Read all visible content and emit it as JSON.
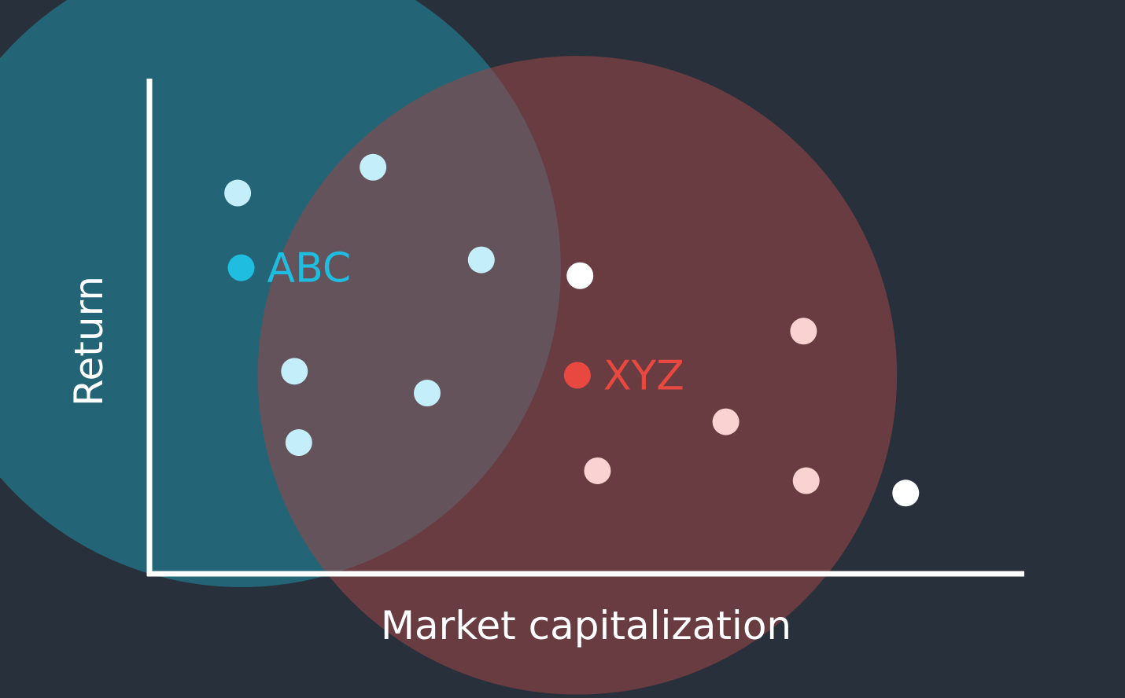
{
  "chart_data": {
    "type": "scatter",
    "xlabel": "Market capitalization",
    "ylabel": "Return",
    "xlim": [
      0,
      100
    ],
    "ylim": [
      0,
      100
    ],
    "grid": false,
    "clusters": [
      {
        "name": "ABC",
        "center": [
          10.5,
          61.8
        ],
        "radius": 36.6,
        "fill": "#1f8fa8",
        "point_color": "#c4eefa",
        "label_color": "#1fbde0",
        "points": [
          [
            10.1,
            76.9
          ],
          [
            25.6,
            82.1
          ],
          [
            38.0,
            63.4
          ],
          [
            16.6,
            40.9
          ],
          [
            31.8,
            36.5
          ],
          [
            17.1,
            26.5
          ]
        ]
      },
      {
        "name": "XYZ",
        "center": [
          49.0,
          40.1
        ],
        "radius": 36.6,
        "fill": "#9c4646",
        "point_color": "#fad2d2",
        "label_color": "#e8483f",
        "points": [
          [
            74.9,
            49.0
          ],
          [
            66.0,
            30.7
          ],
          [
            51.3,
            20.8
          ],
          [
            75.2,
            18.8
          ]
        ]
      }
    ],
    "outliers": {
      "color": "#ffffff",
      "points": [
        [
          49.3,
          60.2
        ],
        [
          86.6,
          16.3
        ]
      ]
    }
  }
}
